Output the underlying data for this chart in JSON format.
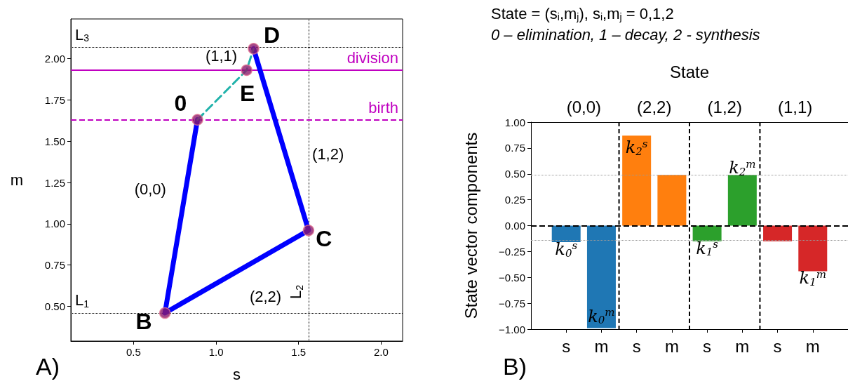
{
  "chart_data": [
    {
      "type": "line",
      "xlabel": "s",
      "ylabel": "m",
      "xlim": [
        0.12,
        2.13
      ],
      "ylim": [
        0.29,
        2.24
      ],
      "xticks": [
        {
          "value": 0.5,
          "label": "0.5"
        },
        {
          "value": 1.0,
          "label": "1.0"
        },
        {
          "value": 1.5,
          "label": "1.5"
        },
        {
          "value": 2.0,
          "label": "2.0"
        }
      ],
      "yticks": [
        {
          "value": 0.5,
          "label": "0.50"
        },
        {
          "value": 0.75,
          "label": "0.75"
        },
        {
          "value": 1.0,
          "label": "1.00"
        },
        {
          "value": 1.25,
          "label": "1.25"
        },
        {
          "value": 1.5,
          "label": "1.50"
        },
        {
          "value": 1.75,
          "label": "1.75"
        },
        {
          "value": 2.0,
          "label": "2.00"
        }
      ],
      "grid": false,
      "series": [
        {
          "type": "line",
          "color": "#0000ff",
          "marker": "none",
          "line_style": "solid",
          "x": [
            0.887,
            0.69,
            1.56,
            1.227
          ],
          "values": [
            1.63,
            0.46,
            0.96,
            2.06
          ]
        },
        {
          "type": "line",
          "color": "#20b2aa",
          "marker": "none",
          "line_style": "dashed",
          "x": [
            0.887,
            1.185,
            1.227
          ],
          "values": [
            1.63,
            1.93,
            2.06
          ]
        },
        {
          "type": "scatter",
          "color": "#8b1a6b",
          "marker": "circle",
          "x": [
            0.887,
            0.69,
            1.56,
            1.227,
            1.185
          ],
          "values": [
            1.63,
            0.46,
            0.96,
            2.06,
            1.93
          ]
        }
      ],
      "ref_lines": [
        {
          "axis": "y",
          "value": 2.07,
          "label": "L$_{3}$",
          "color": "#000000",
          "line_style": "dotted"
        },
        {
          "axis": "y",
          "value": 0.46,
          "label": "L$_{1}$",
          "color": "#000000",
          "line_style": "dotted"
        },
        {
          "axis": "x",
          "value": 1.56,
          "label": "L$_{2}$",
          "color": "#000000",
          "line_style": "dotted"
        },
        {
          "axis": "y",
          "value": 1.93,
          "label": "division",
          "color": "#c000c0",
          "line_style": "solid"
        },
        {
          "axis": "y",
          "value": 1.63,
          "label": "birth",
          "color": "#c000c0",
          "line_style": "dashed"
        }
      ],
      "annotations": [
        "A)",
        {
          "text": "0",
          "x": 0.887,
          "y": 1.63
        },
        {
          "text": "B",
          "x": 0.69,
          "y": 0.46
        },
        {
          "text": "C",
          "x": 1.56,
          "y": 0.96
        },
        {
          "text": "D",
          "x": 1.227,
          "y": 2.06
        },
        {
          "text": "E",
          "x": 1.185,
          "y": 1.93
        },
        {
          "text": "(1,1)",
          "x": 1.036,
          "y": 1.78
        },
        {
          "text": "(1,2)",
          "x": 1.3935,
          "y": 1.51
        },
        {
          "text": "(0,0)",
          "x": 0.7885,
          "y": 1.045
        },
        {
          "text": "(2,2)",
          "x": 1.125,
          "y": 0.71
        }
      ]
    },
    {
      "type": "bar",
      "title": "State = (s$_{i}$,m$_{j}$), s$_{i}$,m$_{j}$ = 0,1,2",
      "subtitle": "0 – elimination, 1 – decay, 2 - synthesis",
      "ylabel": "State vector components",
      "x2label": "State",
      "categories": [
        "s",
        "m",
        "s",
        "m",
        "s",
        "m",
        "s",
        "m"
      ],
      "values": [
        -0.16,
        -0.99,
        0.87,
        0.49,
        -0.15,
        0.49,
        -0.15,
        -0.44
      ],
      "colors": [
        "#1f77b4",
        "#1f77b4",
        "#ff7f0e",
        "#ff7f0e",
        "#2ca02c",
        "#2ca02c",
        "#d62728",
        "#d62728"
      ],
      "ylim": [
        -1.0,
        1.0
      ],
      "yticks": [
        {
          "value": -1.0,
          "label": "−1.00"
        },
        {
          "value": -0.75,
          "label": "−0.75"
        },
        {
          "value": -0.5,
          "label": "−0.50"
        },
        {
          "value": -0.25,
          "label": "−0.25"
        },
        {
          "value": 0,
          "label": "0.00"
        },
        {
          "value": 0.25,
          "label": "0.25"
        },
        {
          "value": 0.5,
          "label": "0.50"
        },
        {
          "value": 0.75,
          "label": "0.75"
        },
        {
          "value": 1.0,
          "label": "1.00"
        }
      ],
      "grid": false,
      "ref_lines": [
        {
          "axis": "y",
          "value": 0,
          "color": "#000000",
          "line_style": "dashed"
        },
        {
          "axis": "y",
          "value": 0.49,
          "color": "#999999",
          "line_style": "dotted"
        },
        {
          "axis": "y",
          "value": -0.14,
          "color": "#999999",
          "line_style": "dotted"
        }
      ],
      "annotations": [
        "B)",
        "(0,0)",
        "(2,2)",
        "(1,2)",
        "(1,1)",
        {
          "text": "k$_{0}$$^{s}$",
          "y": -0.16
        },
        {
          "text": "k$_{0}$$^{m}$",
          "y": -0.99
        },
        {
          "text": "k$_{2}$$^{s}$",
          "y": 0.87
        },
        {
          "text": "k$_{1}$$^{s}$",
          "y": -0.15
        },
        {
          "text": "k$_{2}$$^{m}$",
          "y": 0.49
        },
        {
          "text": "k$_{1}$$^{m}$",
          "y": -0.44
        }
      ]
    }
  ]
}
